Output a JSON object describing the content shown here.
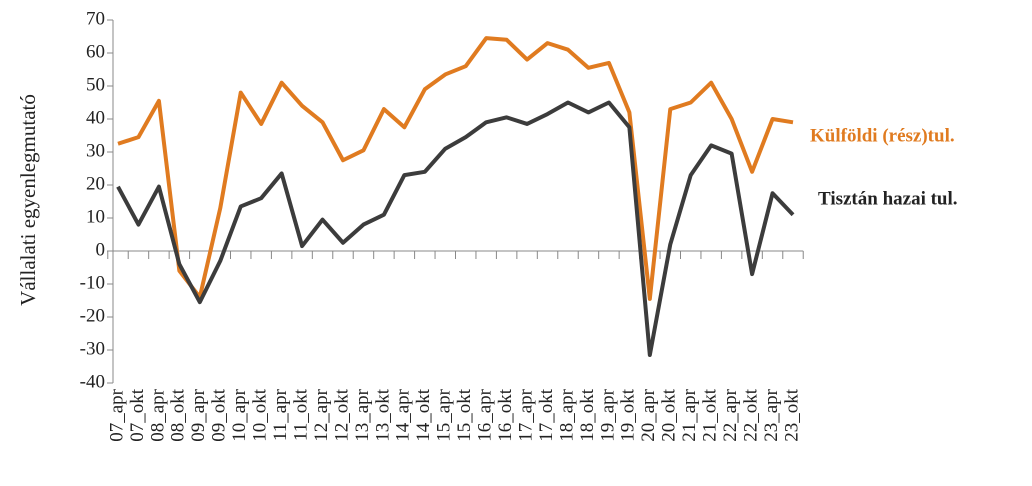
{
  "chart_data": {
    "type": "line",
    "y_axis_label": "Vállalati egyenlegmutató",
    "categories": [
      "07_apr",
      "07_okt",
      "08_apr",
      "08_okt",
      "09_apr",
      "09_okt",
      "10_apr",
      "10_okt",
      "11_apr",
      "11_okt",
      "12_apr",
      "12_okt",
      "13_apr",
      "13_okt",
      "14_apr",
      "14_okt",
      "15_apr",
      "15_okt",
      "16_apr",
      "16_okt",
      "17_apr",
      "17_okt",
      "18_apr",
      "18_okt",
      "19_apr",
      "19_okt",
      "20_apr",
      "20_okt",
      "21_apr",
      "21_okt",
      "22_apr",
      "22_okt",
      "23_apr",
      "23_okt"
    ],
    "series": [
      {
        "name": "Külföldi (rész)tul.",
        "color": "#e07b20",
        "values": [
          32.5,
          34.5,
          45.5,
          -6,
          -14,
          13,
          48,
          38.5,
          51,
          44,
          39,
          27.5,
          30.5,
          43,
          37.5,
          49,
          53.5,
          56,
          64.5,
          64,
          58,
          63,
          61,
          55.5,
          57,
          42,
          -14.5,
          43,
          45,
          51,
          40,
          24,
          40,
          39
        ]
      },
      {
        "name": "Tisztán hazai tul.",
        "color": "#3c3c3c",
        "values": [
          19.5,
          8,
          19.5,
          -4,
          -15.5,
          -3,
          13.5,
          16,
          23.5,
          1.5,
          9.5,
          2.5,
          8,
          11,
          23,
          24,
          31,
          34.5,
          39,
          40.5,
          38.5,
          41.5,
          45,
          42,
          45,
          37.5,
          -31.5,
          2,
          23,
          32,
          29.5,
          -7,
          17.5,
          11
        ]
      }
    ],
    "ylim": [
      -40,
      70
    ],
    "yticks": [
      -40,
      -30,
      -20,
      -10,
      0,
      10,
      20,
      30,
      40,
      50,
      60,
      70
    ]
  }
}
